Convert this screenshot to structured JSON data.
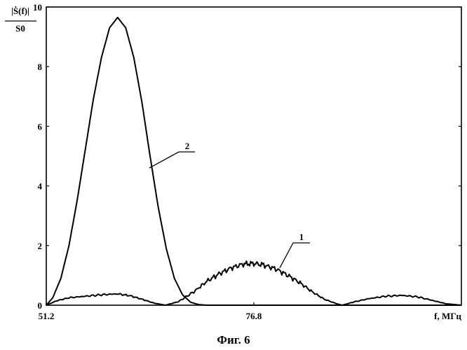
{
  "chart_data": {
    "type": "line",
    "caption": "Фиг. 6",
    "ylabel": {
      "numerator": "|Ṡ(f)|",
      "denominator": "S0"
    },
    "xlabel": "f, МГц",
    "xlim": [
      51.2,
      102.4
    ],
    "ylim": [
      0,
      10
    ],
    "x_ticks": [
      51.2,
      76.8
    ],
    "x_tick_labels": [
      "51.2",
      "76.8"
    ],
    "y_ticks": [
      0,
      2,
      4,
      6,
      8,
      10
    ],
    "y_tick_labels": [
      "0",
      "2",
      "4",
      "6",
      "8",
      "10"
    ],
    "grid": false,
    "series": [
      {
        "name": "1",
        "x": [
          51.2,
          52.5,
          54,
          56,
          58,
          60,
          61.5,
          63,
          64.5,
          65.9,
          67.5,
          69.4,
          71,
          72.5,
          74,
          75.5,
          76.8,
          78,
          79.5,
          81,
          82.5,
          84,
          85.5,
          87,
          87.7,
          89,
          91,
          93,
          95,
          97,
          99,
          100.5,
          102.4
        ],
        "y": [
          0,
          0.15,
          0.25,
          0.3,
          0.35,
          0.38,
          0.32,
          0.2,
          0.07,
          0,
          0.12,
          0.45,
          0.8,
          1.05,
          1.25,
          1.38,
          1.4,
          1.35,
          1.22,
          1.0,
          0.75,
          0.45,
          0.2,
          0.05,
          0,
          0.1,
          0.22,
          0.3,
          0.33,
          0.28,
          0.15,
          0.05,
          0
        ]
      },
      {
        "name": "2",
        "x": [
          51.2,
          52,
          53,
          54,
          55,
          56,
          57,
          58,
          59,
          60,
          61,
          62,
          63,
          64,
          65,
          66,
          67,
          68,
          69,
          70,
          71,
          72,
          102.4
        ],
        "y": [
          0,
          0.25,
          0.9,
          2.0,
          3.5,
          5.2,
          6.9,
          8.3,
          9.3,
          9.65,
          9.3,
          8.3,
          6.8,
          5.0,
          3.3,
          1.9,
          0.9,
          0.35,
          0.1,
          0.02,
          0,
          0,
          0
        ]
      }
    ]
  }
}
